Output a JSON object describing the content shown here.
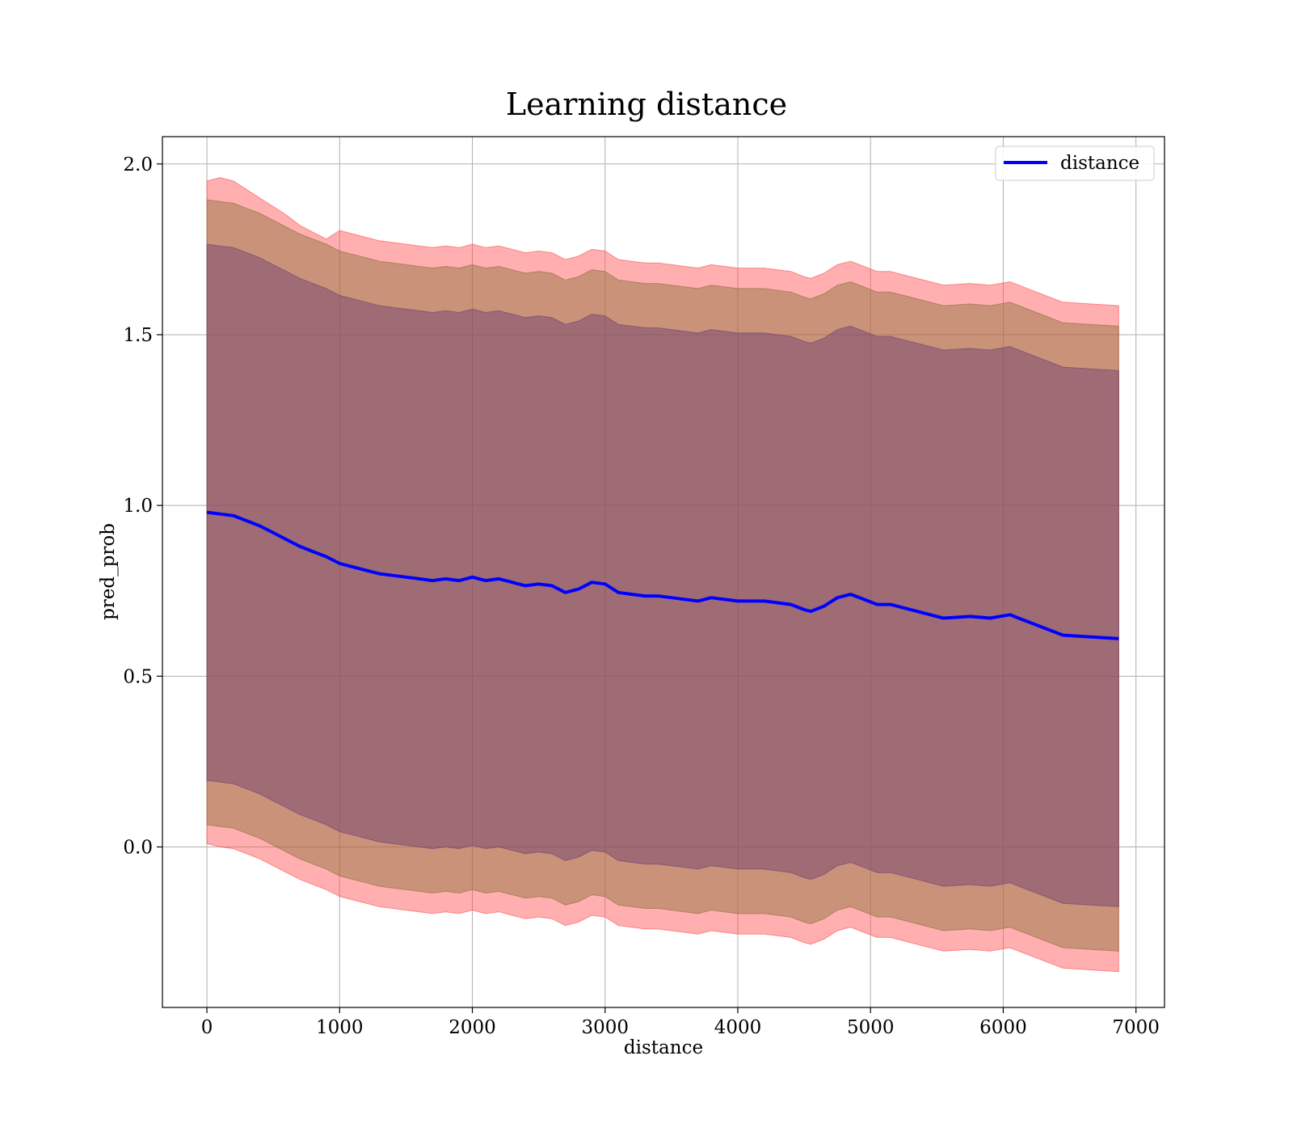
{
  "chart_data": {
    "type": "line",
    "title": "Learning distance",
    "xlabel": "distance",
    "ylabel": "pred_prob",
    "xlim": [
      -335,
      7215
    ],
    "ylim": [
      -0.47,
      2.08
    ],
    "xticks": [
      0,
      1000,
      2000,
      3000,
      4000,
      5000,
      6000,
      7000
    ],
    "xtick_labels": [
      "0",
      "1000",
      "2000",
      "3000",
      "4000",
      "5000",
      "6000",
      "7000"
    ],
    "yticks": [
      0.0,
      0.5,
      1.0,
      1.5,
      2.0
    ],
    "ytick_labels": [
      "0.0",
      "0.5",
      "1.0",
      "1.5",
      "2.0"
    ],
    "grid": true,
    "legend": {
      "position": "top-right",
      "entries": [
        {
          "label": "distance",
          "color": "#0000ff"
        }
      ]
    },
    "series": [
      {
        "name": "distance",
        "color": "#0000ff",
        "x": [
          0,
          100,
          200,
          300,
          400,
          500,
          600,
          700,
          800,
          900,
          1000,
          1100,
          1200,
          1300,
          1400,
          1500,
          1600,
          1700,
          1800,
          1900,
          2000,
          2100,
          2200,
          2300,
          2400,
          2500,
          2600,
          2700,
          2800,
          2900,
          3000,
          3100,
          3200,
          3300,
          3400,
          3500,
          3600,
          3700,
          3800,
          3900,
          4000,
          4100,
          4200,
          4300,
          4400,
          4500,
          4550,
          4650,
          4750,
          4850,
          4950,
          5050,
          5150,
          5250,
          5400,
          5550,
          5750,
          5900,
          6050,
          6250,
          6450,
          6870
        ],
        "y": [
          0.98,
          0.975,
          0.97,
          0.955,
          0.94,
          0.92,
          0.9,
          0.88,
          0.865,
          0.85,
          0.83,
          0.82,
          0.81,
          0.8,
          0.795,
          0.79,
          0.785,
          0.78,
          0.785,
          0.78,
          0.79,
          0.78,
          0.785,
          0.775,
          0.765,
          0.77,
          0.765,
          0.745,
          0.755,
          0.775,
          0.77,
          0.745,
          0.74,
          0.735,
          0.735,
          0.73,
          0.725,
          0.72,
          0.73,
          0.725,
          0.72,
          0.72,
          0.72,
          0.715,
          0.71,
          0.695,
          0.69,
          0.705,
          0.73,
          0.74,
          0.725,
          0.71,
          0.71,
          0.7,
          0.685,
          0.67,
          0.675,
          0.67,
          0.68,
          0.65,
          0.62,
          0.61
        ]
      }
    ],
    "bands": [
      {
        "color": "#ff4d4d",
        "opacity": 0.45,
        "upper_offset": [
          0.97,
          0.985,
          0.98,
          0.97,
          0.96,
          0.955,
          0.95,
          0.94,
          0.935,
          0.93,
          0.975,
          0.975,
          0.975,
          0.975,
          0.975,
          0.975,
          0.975,
          0.975,
          0.975,
          0.975,
          0.975,
          0.975,
          0.975,
          0.975,
          0.975,
          0.975,
          0.975,
          0.975,
          0.975,
          0.975,
          0.975,
          0.975,
          0.975,
          0.975,
          0.975,
          0.975,
          0.975,
          0.975,
          0.975,
          0.975,
          0.975,
          0.975,
          0.975,
          0.975,
          0.975,
          0.975,
          0.975,
          0.975,
          0.975,
          0.975,
          0.975,
          0.975,
          0.975,
          0.975,
          0.975,
          0.975,
          0.975,
          0.975,
          0.975,
          0.975,
          0.975,
          0.975
        ],
        "lower_offset": [
          0.97,
          0.975,
          0.975,
          0.975,
          0.975,
          0.975,
          0.975,
          0.975,
          0.975,
          0.975,
          0.975,
          0.975,
          0.975,
          0.975,
          0.975,
          0.975,
          0.975,
          0.975,
          0.975,
          0.975,
          0.975,
          0.975,
          0.975,
          0.975,
          0.975,
          0.975,
          0.975,
          0.975,
          0.975,
          0.975,
          0.975,
          0.975,
          0.975,
          0.975,
          0.975,
          0.975,
          0.975,
          0.975,
          0.975,
          0.975,
          0.975,
          0.975,
          0.975,
          0.975,
          0.975,
          0.975,
          0.975,
          0.975,
          0.975,
          0.975,
          0.975,
          0.975,
          0.975,
          0.975,
          0.975,
          0.975,
          0.975,
          0.975,
          0.975,
          0.975,
          0.975,
          0.975
        ]
      },
      {
        "color": "#8b6e3a",
        "opacity": 0.45,
        "half_width": 0.915
      },
      {
        "color": "#6b3d70",
        "opacity": 0.45,
        "half_width": 0.785
      }
    ]
  }
}
